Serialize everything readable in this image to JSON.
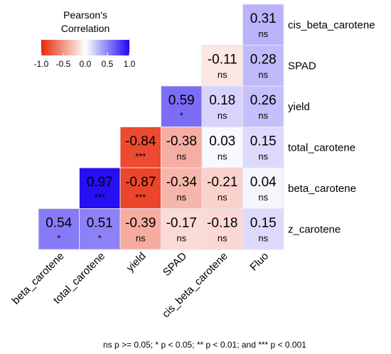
{
  "chart_data": {
    "type": "heatmap",
    "title": "",
    "row_labels": [
      "cis_beta_carotene",
      "SPAD",
      "yield",
      "total_carotene",
      "beta_carotene",
      "z_carotene"
    ],
    "col_labels": [
      "beta_carotene",
      "total_carotene",
      "yield",
      "SPAD",
      "cis_beta_carotene",
      "Fluo"
    ],
    "cells": [
      {
        "row": "cis_beta_carotene",
        "col": "Fluo",
        "value": 0.31,
        "sig": "ns"
      },
      {
        "row": "SPAD",
        "col": "cis_beta_carotene",
        "value": -0.11,
        "sig": "ns"
      },
      {
        "row": "SPAD",
        "col": "Fluo",
        "value": 0.28,
        "sig": "ns"
      },
      {
        "row": "yield",
        "col": "SPAD",
        "value": 0.59,
        "sig": "*"
      },
      {
        "row": "yield",
        "col": "cis_beta_carotene",
        "value": 0.18,
        "sig": "ns"
      },
      {
        "row": "yield",
        "col": "Fluo",
        "value": 0.26,
        "sig": "ns"
      },
      {
        "row": "total_carotene",
        "col": "yield",
        "value": -0.84,
        "sig": "***"
      },
      {
        "row": "total_carotene",
        "col": "SPAD",
        "value": -0.38,
        "sig": "ns"
      },
      {
        "row": "total_carotene",
        "col": "cis_beta_carotene",
        "value": 0.03,
        "sig": "ns"
      },
      {
        "row": "total_carotene",
        "col": "Fluo",
        "value": 0.15,
        "sig": "ns"
      },
      {
        "row": "beta_carotene",
        "col": "total_carotene",
        "value": 0.97,
        "sig": "***"
      },
      {
        "row": "beta_carotene",
        "col": "yield",
        "value": -0.87,
        "sig": "***"
      },
      {
        "row": "beta_carotene",
        "col": "SPAD",
        "value": -0.34,
        "sig": "ns"
      },
      {
        "row": "beta_carotene",
        "col": "cis_beta_carotene",
        "value": -0.21,
        "sig": "ns"
      },
      {
        "row": "beta_carotene",
        "col": "Fluo",
        "value": 0.04,
        "sig": "ns"
      },
      {
        "row": "z_carotene",
        "col": "beta_carotene",
        "value": 0.54,
        "sig": "*"
      },
      {
        "row": "z_carotene",
        "col": "total_carotene",
        "value": 0.51,
        "sig": "*"
      },
      {
        "row": "z_carotene",
        "col": "yield",
        "value": -0.39,
        "sig": "ns"
      },
      {
        "row": "z_carotene",
        "col": "SPAD",
        "value": -0.17,
        "sig": "ns"
      },
      {
        "row": "z_carotene",
        "col": "cis_beta_carotene",
        "value": -0.18,
        "sig": "ns"
      },
      {
        "row": "z_carotene",
        "col": "Fluo",
        "value": 0.15,
        "sig": "ns"
      }
    ],
    "legend": {
      "title_line1": "Pearson's",
      "title_line2": "Correlation",
      "range": [
        -1.0,
        1.0
      ],
      "ticks": [
        "-1.0",
        "-0.5",
        "0.0",
        "0.5",
        "1.0"
      ],
      "tick_values": [
        -1.0,
        -0.5,
        0.0,
        0.5,
        1.0
      ],
      "placement": "top-left"
    },
    "colors": {
      "low": "#e8290b",
      "mid": "#ffffff",
      "high": "#1f08f0",
      "border": "#e6e6ee"
    },
    "footnote": "ns p >= 0.05; * p < 0.05; ** p < 0.01; and *** p < 0.001"
  }
}
